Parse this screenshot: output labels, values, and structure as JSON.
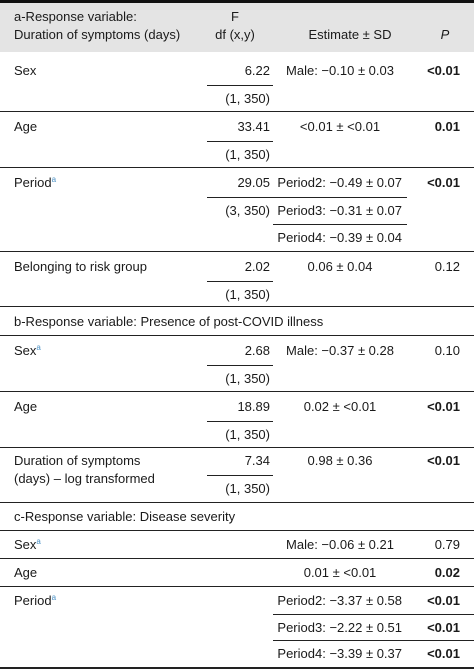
{
  "header": {
    "col1_line1": "a-Response variable:",
    "col1_line2": "Duration of symptoms (days)",
    "col2_line1": "F",
    "col2_line2": "df (x,y)",
    "col3": "Estimate ± SD",
    "col4": "P"
  },
  "section_a": {
    "sex": {
      "label": "Sex",
      "f": "6.22",
      "df": "(1, 350)",
      "estimate": "Male: −0.10 ± 0.03",
      "p": "<0.01"
    },
    "age": {
      "label": "Age",
      "f": "33.41",
      "df": "(1, 350)",
      "estimate": "<0.01 ± <0.01",
      "p": "0.01"
    },
    "period": {
      "label": "Period",
      "sup": "a",
      "f": "29.05",
      "df": "(3, 350)",
      "estimates": [
        "Period2: −0.49 ± 0.07",
        "Period3: −0.31 ± 0.07",
        "Period4: −0.39 ± 0.04"
      ],
      "p": "<0.01"
    },
    "risk": {
      "label": "Belonging to risk group",
      "f": "2.02",
      "df": "(1, 350)",
      "estimate": "0.06 ± 0.04",
      "p": "0.12"
    }
  },
  "section_b": {
    "title": "b-Response variable: Presence of post-COVID illness",
    "sex": {
      "label": "Sex",
      "sup": "a",
      "f": "2.68",
      "df": "(1, 350)",
      "estimate": "Male: −0.37 ± 0.28",
      "p": "0.10"
    },
    "age": {
      "label": "Age",
      "f": "18.89",
      "df": "(1, 350)",
      "estimate": "0.02 ± <0.01",
      "p": "<0.01"
    },
    "duration": {
      "label_line1": "Duration of symptoms",
      "label_line2": "(days) – log transformed",
      "f": "7.34",
      "df": "(1, 350)",
      "estimate": "0.98 ± 0.36",
      "p": "<0.01"
    }
  },
  "section_c": {
    "title": "c-Response variable: Disease severity",
    "sex": {
      "label": "Sex",
      "sup": "a",
      "estimate": "Male: −0.06 ± 0.21",
      "p": "0.79"
    },
    "age": {
      "label": "Age",
      "estimate": "0.01 ± <0.01",
      "p": "0.02"
    },
    "period": {
      "label": "Period",
      "sup": "a",
      "estimates": [
        "Period2: −3.37 ± 0.58",
        "Period3: −2.22 ± 0.51",
        "Period4: −3.39 ± 0.37"
      ],
      "ps": [
        "<0.01",
        "<0.01",
        "<0.01"
      ]
    }
  }
}
